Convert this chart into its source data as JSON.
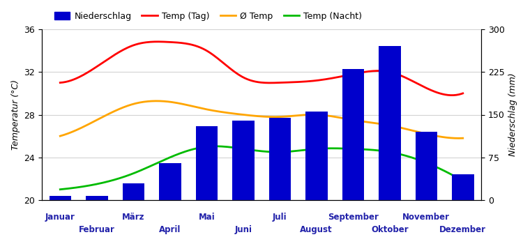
{
  "months": [
    "Januar",
    "Februar",
    "März",
    "April",
    "Mai",
    "Juni",
    "Juli",
    "August",
    "September",
    "Oktober",
    "November",
    "Dezember"
  ],
  "temp_tag": [
    31.0,
    32.5,
    34.5,
    34.8,
    34.0,
    31.5,
    31.0,
    31.2,
    31.8,
    32.0,
    30.5,
    30.0
  ],
  "temp_avg": [
    26.0,
    27.5,
    29.0,
    29.2,
    28.5,
    28.0,
    27.8,
    28.0,
    27.5,
    27.0,
    26.2,
    25.8
  ],
  "temp_nacht": [
    21.0,
    21.5,
    22.5,
    24.0,
    25.0,
    24.8,
    24.5,
    24.8,
    24.8,
    24.5,
    23.5,
    21.8
  ],
  "niederschlag": [
    7,
    7,
    30,
    65,
    130,
    140,
    145,
    155,
    230,
    270,
    120,
    45
  ],
  "bar_color": "#0000CC",
  "temp_tag_color": "#FF0000",
  "temp_avg_color": "#FFA500",
  "temp_nacht_color": "#00BB00",
  "ylabel_left": "Temperatur (°C)",
  "ylabel_right": "Niederschlag (mm)",
  "ylim_left": [
    20,
    36
  ],
  "ylim_right": [
    0,
    300
  ],
  "yticks_left": [
    20,
    24,
    28,
    32,
    36
  ],
  "yticks_right": [
    0,
    75,
    150,
    225,
    300
  ]
}
